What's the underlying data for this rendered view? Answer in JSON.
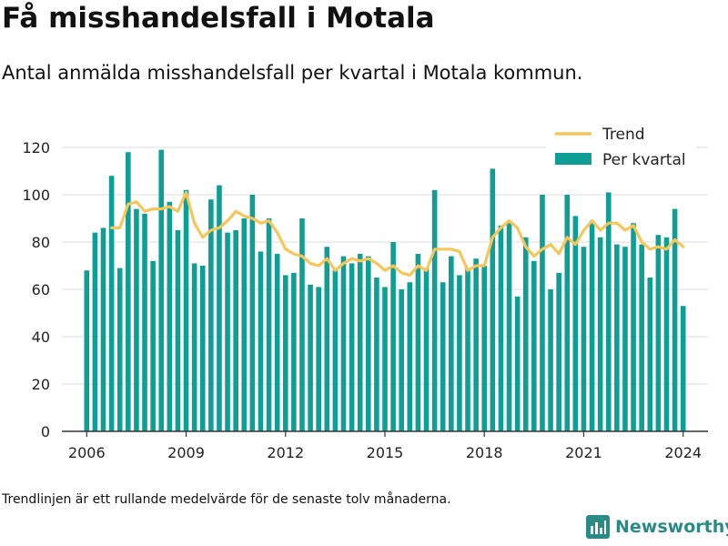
{
  "title": "Få misshandelsfall i Motala",
  "subtitle": "Antal anmälda misshandelsfall per kvartal i Motala kommun.",
  "footnote": "Trendlinjen är ett rullande medelvärde för de senaste tolv månaderna.",
  "brand": {
    "name": "Newsworthy",
    "icon": "newsworthy-logo-icon",
    "color": "#2a8a86"
  },
  "colors": {
    "bars": "#0f9e96",
    "trend": "#f5c65a",
    "grid": "#dddddd",
    "axis": "#333333"
  },
  "chart_data": {
    "type": "bar",
    "title": "",
    "xlabel": "",
    "ylabel": "",
    "ylim": [
      0,
      120
    ],
    "yticks": [
      0,
      20,
      40,
      60,
      80,
      100,
      120
    ],
    "xlim": [
      2005.25,
      2024.75
    ],
    "xticks": [
      2006,
      2009,
      2012,
      2015,
      2018,
      2021,
      2024
    ],
    "grid": true,
    "legend_position": "top-right",
    "series": [
      {
        "name": "Trend",
        "type": "line",
        "x": [
          2006.75,
          2007.0,
          2007.25,
          2007.5,
          2007.75,
          2008.0,
          2008.25,
          2008.5,
          2008.75,
          2009.0,
          2009.25,
          2009.5,
          2009.75,
          2010.0,
          2010.25,
          2010.5,
          2010.75,
          2011.0,
          2011.25,
          2011.5,
          2011.75,
          2012.0,
          2012.25,
          2012.5,
          2012.75,
          2013.0,
          2013.25,
          2013.5,
          2013.75,
          2014.0,
          2014.25,
          2014.5,
          2014.75,
          2015.0,
          2015.25,
          2015.5,
          2015.75,
          2016.0,
          2016.25,
          2016.5,
          2016.75,
          2017.0,
          2017.25,
          2017.5,
          2017.75,
          2018.0,
          2018.25,
          2018.5,
          2018.75,
          2019.0,
          2019.25,
          2019.5,
          2019.75,
          2020.0,
          2020.25,
          2020.5,
          2020.75,
          2021.0,
          2021.25,
          2021.5,
          2021.75,
          2022.0,
          2022.25,
          2022.5,
          2022.75,
          2023.0,
          2023.25,
          2023.5,
          2023.75,
          2024.0
        ],
        "values": [
          86,
          86,
          96,
          97,
          93,
          94,
          94,
          95,
          93,
          101,
          88,
          82,
          85,
          86,
          89,
          93,
          91,
          90,
          88,
          89,
          84,
          77,
          75,
          74,
          71,
          70,
          73,
          68,
          71,
          73,
          72,
          73,
          71,
          68,
          70,
          67,
          66,
          70,
          68,
          77,
          77,
          77,
          76,
          68,
          70,
          70,
          82,
          86,
          89,
          86,
          78,
          74,
          77,
          79,
          75,
          82,
          79,
          85,
          89,
          85,
          88,
          88,
          85,
          87,
          80,
          77,
          78,
          77,
          81,
          78
        ]
      },
      {
        "name": "Per kvartal",
        "type": "bar",
        "x": [
          2006.0,
          2006.25,
          2006.5,
          2006.75,
          2007.0,
          2007.25,
          2007.5,
          2007.75,
          2008.0,
          2008.25,
          2008.5,
          2008.75,
          2009.0,
          2009.25,
          2009.5,
          2009.75,
          2010.0,
          2010.25,
          2010.5,
          2010.75,
          2011.0,
          2011.25,
          2011.5,
          2011.75,
          2012.0,
          2012.25,
          2012.5,
          2012.75,
          2013.0,
          2013.25,
          2013.5,
          2013.75,
          2014.0,
          2014.25,
          2014.5,
          2014.75,
          2015.0,
          2015.25,
          2015.5,
          2015.75,
          2016.0,
          2016.25,
          2016.5,
          2016.75,
          2017.0,
          2017.25,
          2017.5,
          2017.75,
          2018.0,
          2018.25,
          2018.5,
          2018.75,
          2019.0,
          2019.25,
          2019.5,
          2019.75,
          2020.0,
          2020.25,
          2020.5,
          2020.75,
          2021.0,
          2021.25,
          2021.5,
          2021.75,
          2022.0,
          2022.25,
          2022.5,
          2022.75,
          2023.0,
          2023.25,
          2023.5,
          2023.75,
          2024.0
        ],
        "values": [
          68,
          84,
          86,
          108,
          69,
          118,
          94,
          92,
          72,
          119,
          97,
          85,
          102,
          71,
          70,
          98,
          104,
          84,
          85,
          90,
          100,
          76,
          90,
          75,
          66,
          67,
          90,
          62,
          61,
          78,
          68,
          74,
          71,
          75,
          74,
          65,
          61,
          80,
          60,
          63,
          75,
          69,
          102,
          63,
          74,
          66,
          69,
          73,
          70,
          111,
          87,
          88,
          57,
          82,
          72,
          100,
          60,
          67,
          100,
          91,
          78,
          89,
          82,
          101,
          79,
          78,
          88,
          79,
          65,
          83,
          82,
          94,
          53
        ]
      }
    ]
  }
}
